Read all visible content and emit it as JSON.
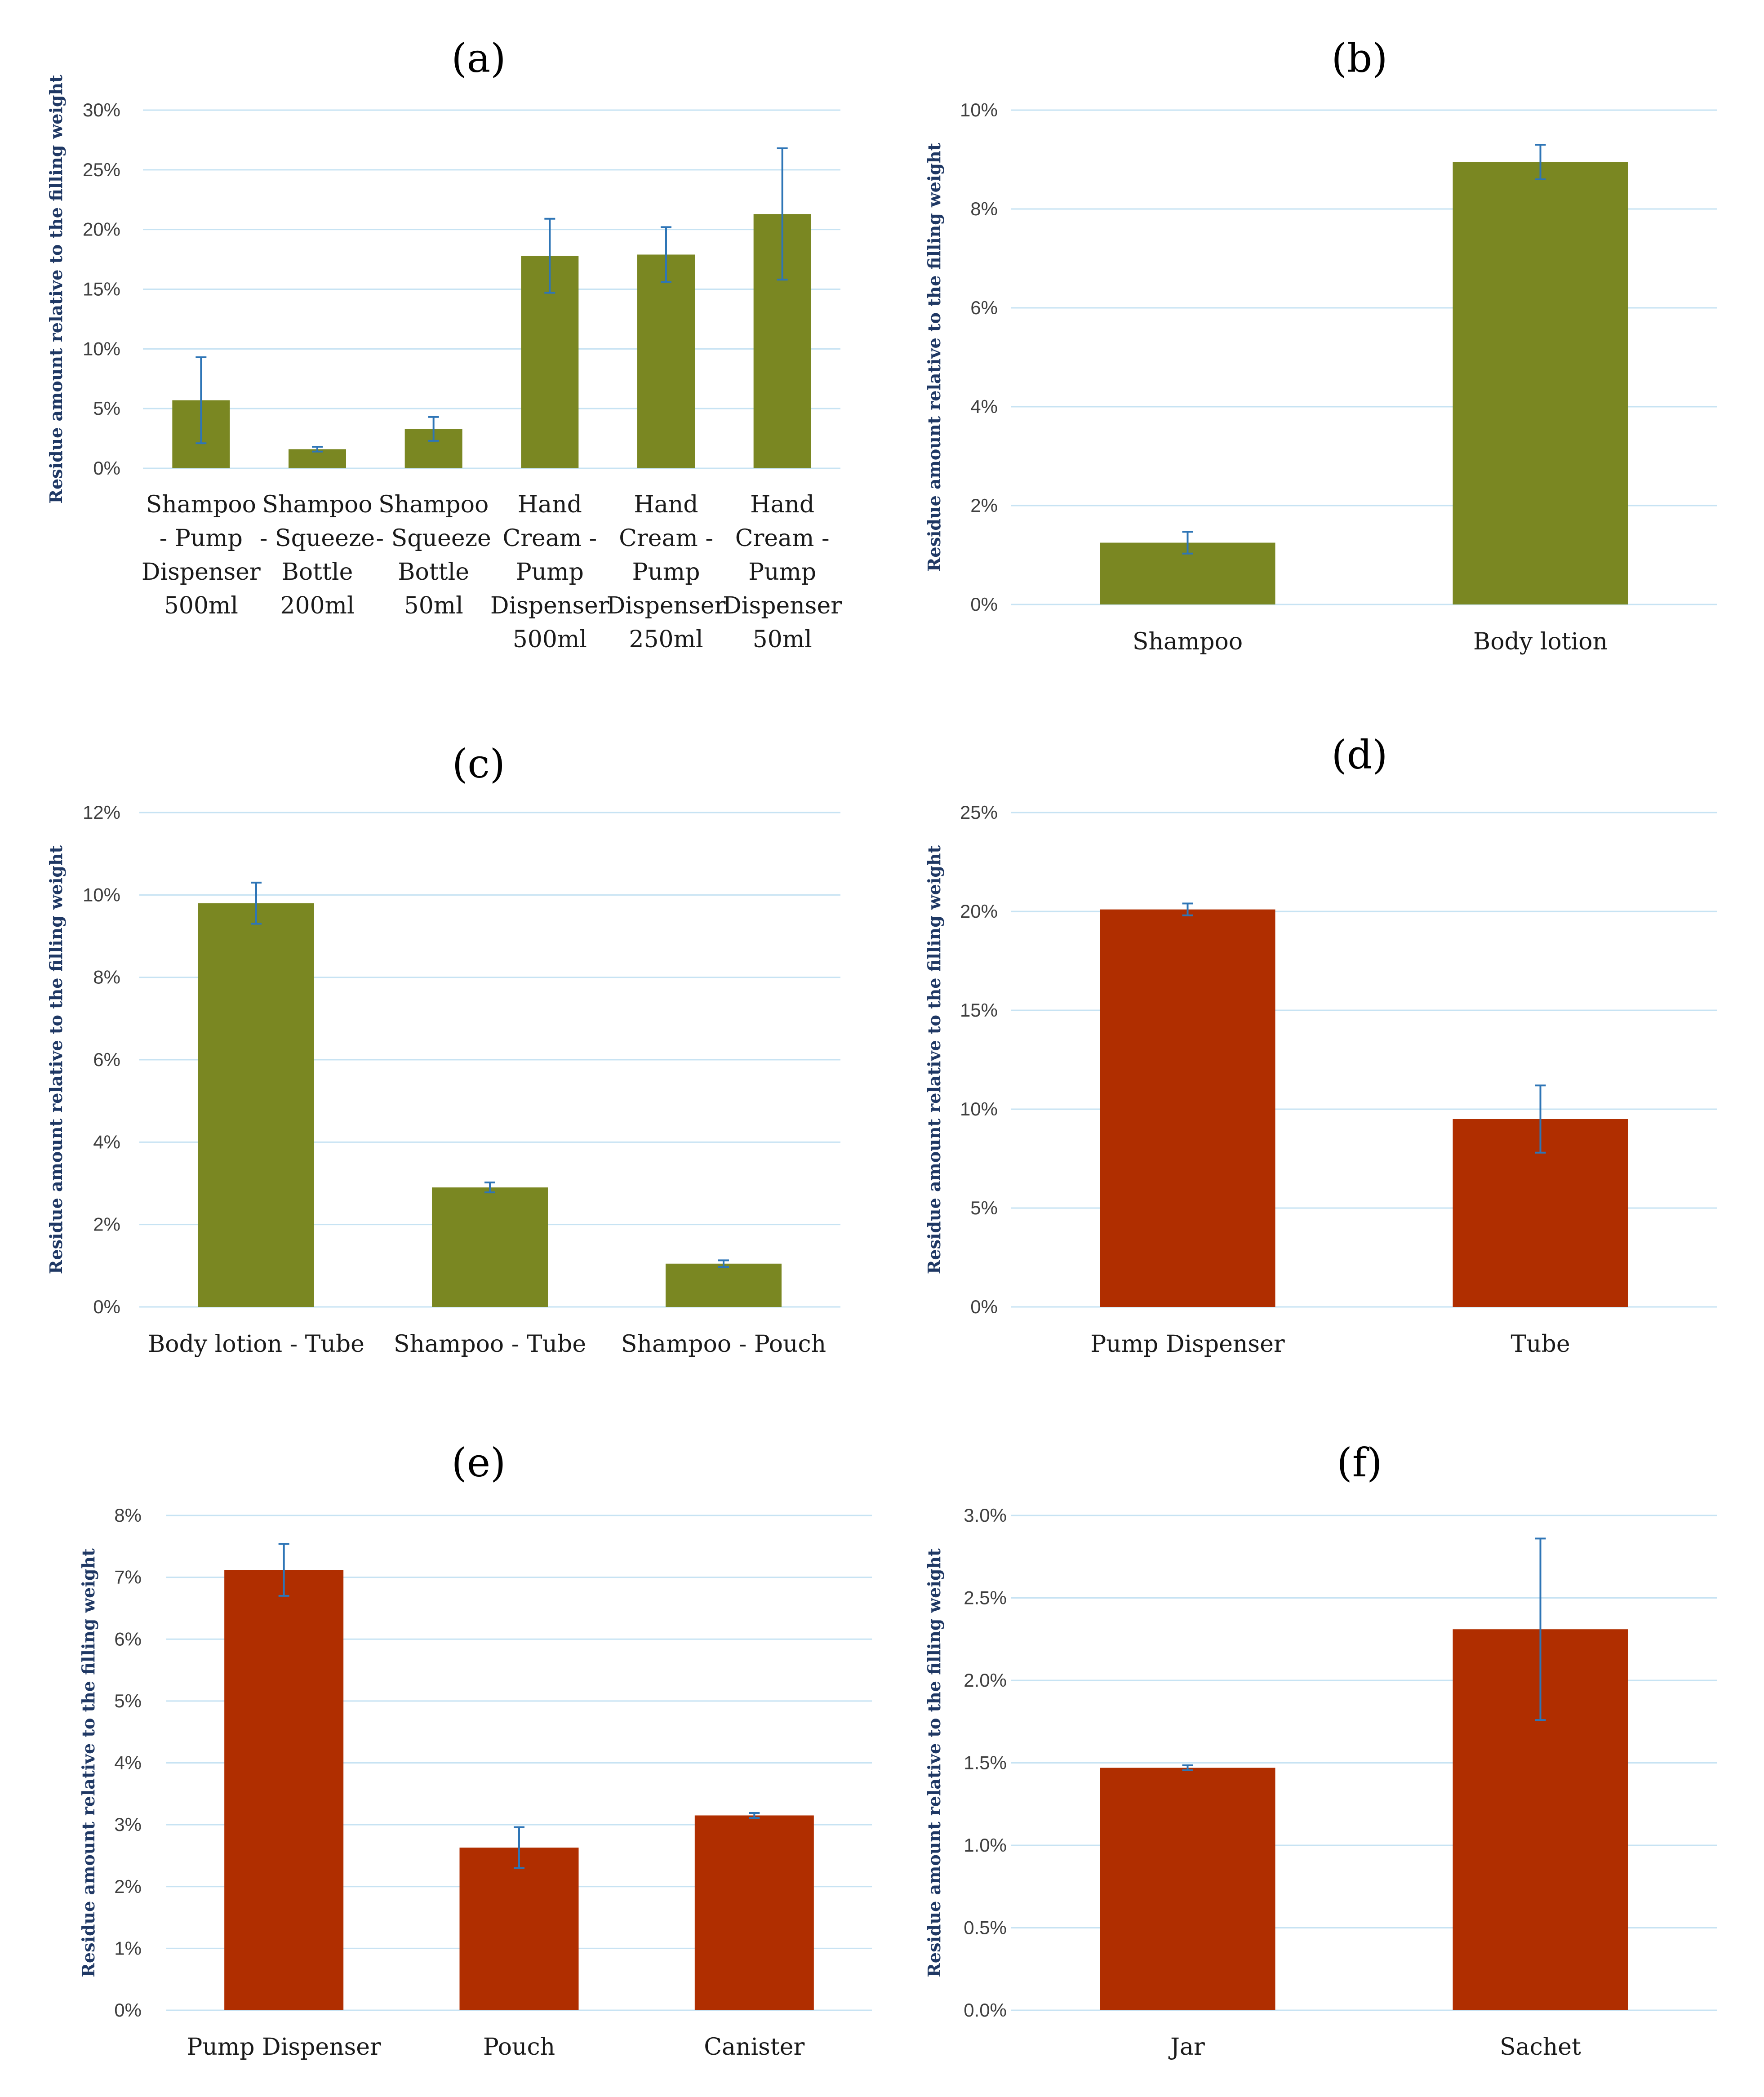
{
  "colors": {
    "olive": "#7a8722",
    "rust": "#b02e00",
    "grid": "#c7e3f3",
    "error": "#2e75b6"
  },
  "chart_data": [
    {
      "type": "bar",
      "title": "(a)",
      "ylabel": "Residue amount relative to the filling weight",
      "ylim": [
        0,
        30
      ],
      "yticks": [
        "0%",
        "5%",
        "10%",
        "15%",
        "20%",
        "25%",
        "30%"
      ],
      "categories": [
        "Shampoo - Pump Dispenser 500ml",
        "Shampoo - Squeeze Bottle 200ml",
        "Shampoo - Squeeze Bottle 50ml",
        "Hand Cream - Pump Dispenser 500ml",
        "Hand Cream - Pump Dispenser 250ml",
        "Hand Cream - Pump Dispenser 50ml"
      ],
      "category_lines": [
        [
          "Shampoo",
          "- Pump",
          "Dispenser",
          "500ml"
        ],
        [
          "Shampoo",
          "- Squeeze",
          "Bottle",
          "200ml"
        ],
        [
          "Shampoo",
          "- Squeeze",
          "Bottle",
          "50ml"
        ],
        [
          "Hand",
          "Cream -",
          "Pump",
          "Dispenser",
          "500ml"
        ],
        [
          "Hand",
          "Cream -",
          "Pump",
          "Dispenser",
          "250ml"
        ],
        [
          "Hand",
          "Cream -",
          "Pump",
          "Dispenser",
          "50ml"
        ]
      ],
      "values": [
        5.7,
        1.6,
        3.3,
        17.8,
        17.9,
        21.3
      ],
      "errors": [
        3.6,
        0.2,
        1.0,
        3.1,
        2.3,
        5.5
      ],
      "color": "olive"
    },
    {
      "type": "bar",
      "title": "(b)",
      "ylabel": "Residue amount relative to the filling weight",
      "ylim": [
        0,
        10
      ],
      "yticks": [
        "0%",
        "2%",
        "4%",
        "6%",
        "8%",
        "10%"
      ],
      "categories": [
        "Shampoo",
        "Body lotion"
      ],
      "category_lines": [
        [
          "Shampoo"
        ],
        [
          "Body lotion"
        ]
      ],
      "values": [
        1.25,
        8.95
      ],
      "errors": [
        0.22,
        0.35
      ],
      "color": "olive"
    },
    {
      "type": "bar",
      "title": "(c)",
      "ylabel": "Residue amount relative to the filling weight",
      "ylim": [
        0,
        12
      ],
      "yticks": [
        "0%",
        "2%",
        "4%",
        "6%",
        "8%",
        "10%",
        "12%"
      ],
      "categories": [
        "Body lotion - Tube",
        "Shampoo - Tube",
        "Shampoo - Pouch"
      ],
      "category_lines": [
        [
          "Body lotion - Tube"
        ],
        [
          "Shampoo - Tube"
        ],
        [
          "Shampoo - Pouch"
        ]
      ],
      "values": [
        9.8,
        2.9,
        1.05
      ],
      "errors": [
        0.5,
        0.12,
        0.08
      ],
      "color": "olive"
    },
    {
      "type": "bar",
      "title": "(d)",
      "ylabel": "Residue amount relative to the filling weight",
      "ylim": [
        0,
        25
      ],
      "yticks": [
        "0%",
        "5%",
        "10%",
        "15%",
        "20%",
        "25%"
      ],
      "categories": [
        "Pump Dispenser",
        "Tube"
      ],
      "category_lines": [
        [
          "Pump Dispenser"
        ],
        [
          "Tube"
        ]
      ],
      "values": [
        20.1,
        9.5
      ],
      "errors": [
        0.3,
        1.7
      ],
      "color": "rust"
    },
    {
      "type": "bar",
      "title": "(e)",
      "ylabel": "Residue amount relative to the filling weight",
      "ylim": [
        0,
        8
      ],
      "yticks": [
        "0%",
        "1%",
        "2%",
        "3%",
        "4%",
        "5%",
        "6%",
        "7%",
        "8%"
      ],
      "categories": [
        "Pump Dispenser",
        "Pouch",
        "Canister"
      ],
      "category_lines": [
        [
          "Pump Dispenser"
        ],
        [
          "Pouch"
        ],
        [
          "Canister"
        ]
      ],
      "values": [
        7.12,
        2.63,
        3.15
      ],
      "errors": [
        0.42,
        0.33,
        0.04
      ],
      "color": "rust"
    },
    {
      "type": "bar",
      "title": "(f)",
      "ylabel": "Residue amount relative to the filling weight",
      "ylim": [
        0,
        3
      ],
      "yticks": [
        "0.0%",
        "0.5%",
        "1.0%",
        "1.5%",
        "2.0%",
        "2.5%",
        "3.0%"
      ],
      "categories": [
        "Jar",
        "Sachet"
      ],
      "category_lines": [
        [
          "Jar"
        ],
        [
          "Sachet"
        ]
      ],
      "values": [
        1.47,
        2.31
      ],
      "errors": [
        0.015,
        0.55
      ],
      "color": "rust"
    }
  ]
}
